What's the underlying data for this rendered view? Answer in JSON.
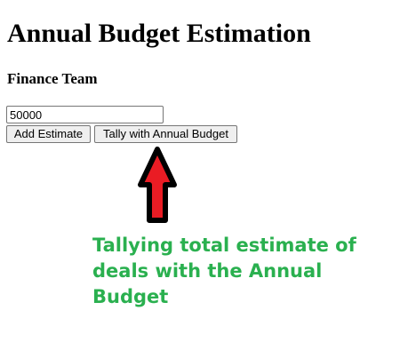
{
  "header": {
    "title": "Annual Budget Estimation",
    "team": "Finance Team"
  },
  "form": {
    "amount_value": "50000",
    "add_button_label": "Add Estimate",
    "tally_button_label": "Tally with Annual Budget"
  },
  "annotation": {
    "text": "Tallying total estimate of deals with the Annual Budget",
    "text_color": "#2ab04f",
    "arrow_color": "#ea1c24",
    "arrow_outline_color": "#000000",
    "arrow_icon": "up-arrow-icon"
  }
}
